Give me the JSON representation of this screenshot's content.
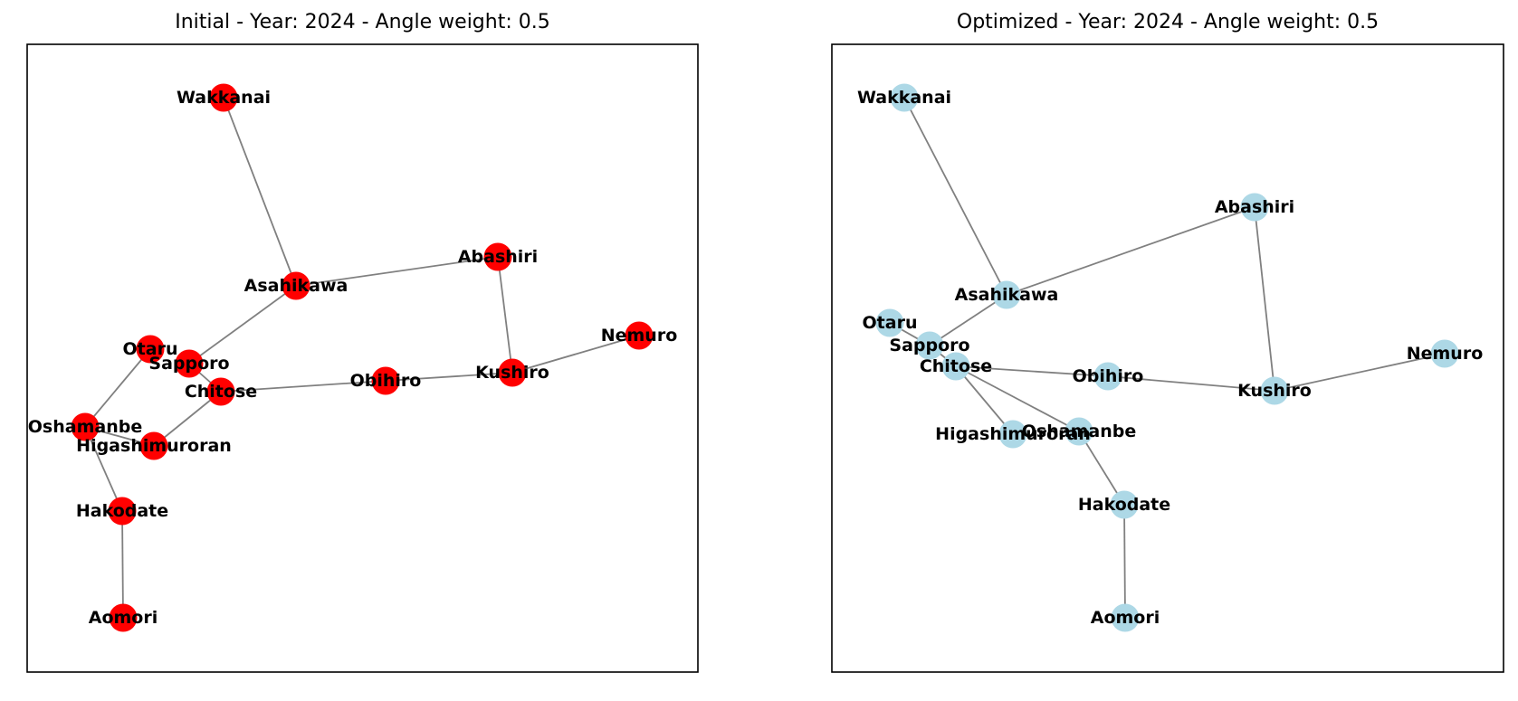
{
  "colors": {
    "initial_node": "#ff0000",
    "optimized_node": "#add8e6",
    "edge": "#808080"
  },
  "panels": [
    {
      "id": "initial",
      "title": "Initial - Year: 2024 - Angle weight: 0.5",
      "node_color": "#ff0000",
      "nodes": [
        {
          "name": "Wakkanai",
          "pos": [
            247,
            108
          ]
        },
        {
          "name": "Asahikawa",
          "pos": [
            327,
            316
          ]
        },
        {
          "name": "Abashiri",
          "pos": [
            550,
            284
          ]
        },
        {
          "name": "Nemuro",
          "pos": [
            706,
            371
          ]
        },
        {
          "name": "Otaru",
          "pos": [
            166,
            386
          ]
        },
        {
          "name": "Sapporo",
          "pos": [
            209,
            402
          ]
        },
        {
          "name": "Chitose",
          "pos": [
            244,
            433
          ]
        },
        {
          "name": "Obihiro",
          "pos": [
            426,
            421
          ]
        },
        {
          "name": "Kushiro",
          "pos": [
            566,
            412
          ]
        },
        {
          "name": "Oshamanbe",
          "pos": [
            94,
            472
          ]
        },
        {
          "name": "Higashimuroran",
          "pos": [
            170,
            493
          ]
        },
        {
          "name": "Hakodate",
          "pos": [
            135,
            565
          ]
        },
        {
          "name": "Aomori",
          "pos": [
            136,
            683
          ]
        }
      ],
      "edges": [
        [
          "Wakkanai",
          "Asahikawa"
        ],
        [
          "Asahikawa",
          "Abashiri"
        ],
        [
          "Asahikawa",
          "Sapporo"
        ],
        [
          "Abashiri",
          "Kushiro"
        ],
        [
          "Kushiro",
          "Nemuro"
        ],
        [
          "Kushiro",
          "Obihiro"
        ],
        [
          "Obihiro",
          "Chitose"
        ],
        [
          "Sapporo",
          "Chitose"
        ],
        [
          "Chitose",
          "Higashimuroran"
        ],
        [
          "Higashimuroran",
          "Oshamanbe"
        ],
        [
          "Otaru",
          "Oshamanbe"
        ],
        [
          "Oshamanbe",
          "Hakodate"
        ],
        [
          "Hakodate",
          "Aomori"
        ]
      ]
    },
    {
      "id": "optimized",
      "title": "Optimized - Year: 2024 - Angle weight: 0.5",
      "node_color": "#add8e6",
      "nodes": [
        {
          "name": "Wakkanai",
          "pos": [
            999,
            108
          ]
        },
        {
          "name": "Abashiri",
          "pos": [
            1386,
            229
          ]
        },
        {
          "name": "Asahikawa",
          "pos": [
            1112,
            326
          ]
        },
        {
          "name": "Otaru",
          "pos": [
            983,
            357
          ]
        },
        {
          "name": "Sapporo",
          "pos": [
            1027,
            382
          ]
        },
        {
          "name": "Chitose",
          "pos": [
            1056,
            405
          ]
        },
        {
          "name": "Obihiro",
          "pos": [
            1224,
            416
          ]
        },
        {
          "name": "Kushiro",
          "pos": [
            1408,
            432
          ]
        },
        {
          "name": "Nemuro",
          "pos": [
            1596,
            391
          ]
        },
        {
          "name": "Higashimuroran",
          "pos": [
            1119,
            480
          ]
        },
        {
          "name": "Oshamanbe",
          "pos": [
            1192,
            477
          ]
        },
        {
          "name": "Hakodate",
          "pos": [
            1242,
            558
          ]
        },
        {
          "name": "Aomori",
          "pos": [
            1243,
            683
          ]
        }
      ],
      "edges": [
        [
          "Wakkanai",
          "Asahikawa"
        ],
        [
          "Asahikawa",
          "Abashiri"
        ],
        [
          "Asahikawa",
          "Sapporo"
        ],
        [
          "Abashiri",
          "Kushiro"
        ],
        [
          "Kushiro",
          "Nemuro"
        ],
        [
          "Kushiro",
          "Obihiro"
        ],
        [
          "Obihiro",
          "Chitose"
        ],
        [
          "Sapporo",
          "Chitose"
        ],
        [
          "Otaru",
          "Sapporo"
        ],
        [
          "Chitose",
          "Higashimuroran"
        ],
        [
          "Chitose",
          "Oshamanbe"
        ],
        [
          "Oshamanbe",
          "Hakodate"
        ],
        [
          "Hakodate",
          "Aomori"
        ]
      ]
    }
  ]
}
